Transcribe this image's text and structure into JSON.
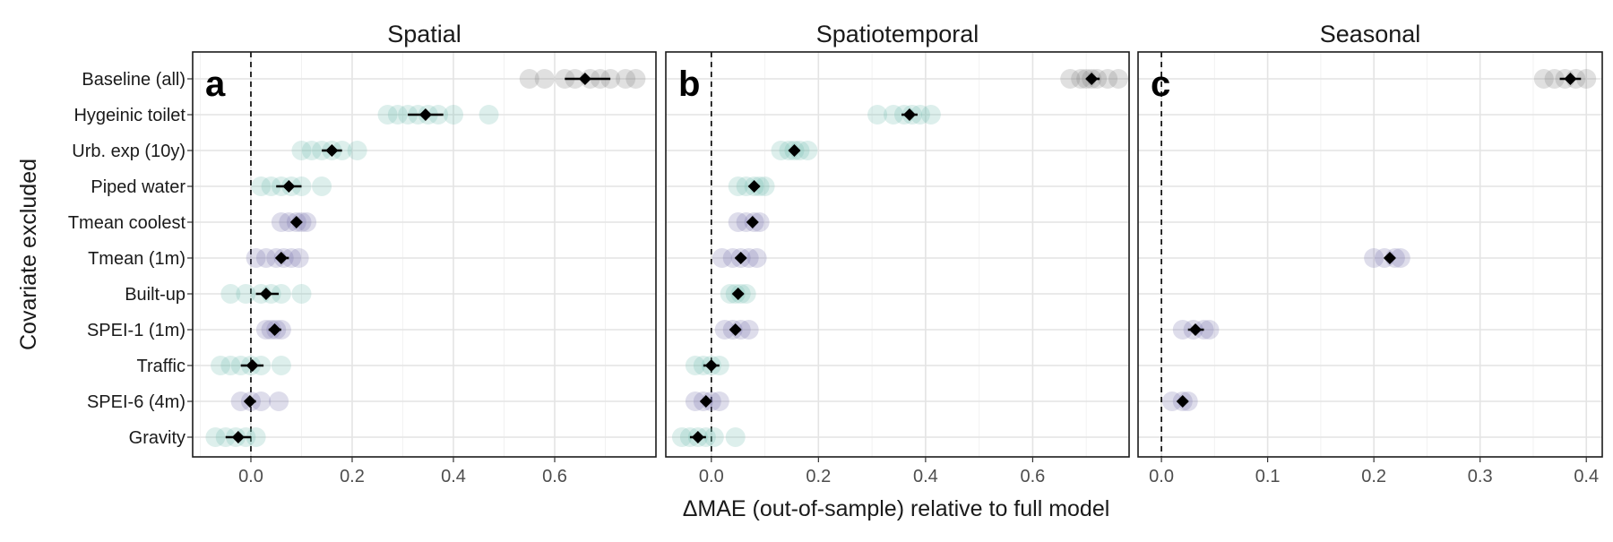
{
  "chart_data": {
    "type": "scatter",
    "xlabel": "ΔMAE (out-of-sample) relative to full model",
    "ylabel": "Covariate excluded",
    "categories": [
      "Baseline (all)",
      "Hygeinic toilet",
      "Urb. exp (10y)",
      "Piped water",
      "Tmean coolest",
      "Tmean (1m)",
      "Built-up",
      "SPEI-1 (1m)",
      "Traffic",
      "SPEI-6 (4m)",
      "Gravity"
    ],
    "colors": {
      "baseline": "#707070",
      "teal": "#66b8aa",
      "purple": "#6a65a3",
      "mean_marker": "#000000"
    },
    "panels": [
      {
        "title": "Spatial",
        "letter": "a",
        "xlim": [
          -0.115,
          0.8
        ],
        "xticks": [
          0.0,
          0.2,
          0.4,
          0.6
        ],
        "xtick_labels": [
          "0.0",
          "0.2",
          "0.4",
          "0.6"
        ],
        "series": [
          {
            "category": "Baseline (all)",
            "group": "baseline",
            "mean": 0.66,
            "ci": [
              0.62,
              0.71
            ],
            "points": [
              0.55,
              0.58,
              0.62,
              0.64,
              0.67,
              0.69,
              0.71,
              0.74,
              0.76
            ]
          },
          {
            "category": "Hygeinic toilet",
            "group": "teal",
            "mean": 0.345,
            "ci": [
              0.31,
              0.38
            ],
            "points": [
              0.27,
              0.29,
              0.31,
              0.33,
              0.35,
              0.37,
              0.4,
              0.47
            ]
          },
          {
            "category": "Urb. exp (10y)",
            "group": "teal",
            "mean": 0.16,
            "ci": [
              0.14,
              0.18
            ],
            "points": [
              0.1,
              0.12,
              0.14,
              0.16,
              0.18,
              0.21
            ]
          },
          {
            "category": "Piped water",
            "group": "teal",
            "mean": 0.075,
            "ci": [
              0.05,
              0.1
            ],
            "points": [
              0.02,
              0.04,
              0.06,
              0.08,
              0.1,
              0.14
            ]
          },
          {
            "category": "Tmean coolest",
            "group": "purple",
            "mean": 0.09,
            "ci": [
              0.08,
              0.1
            ],
            "points": [
              0.06,
              0.075,
              0.09,
              0.1,
              0.11
            ]
          },
          {
            "category": "Tmean (1m)",
            "group": "purple",
            "mean": 0.06,
            "ci": [
              0.05,
              0.075
            ],
            "points": [
              0.01,
              0.03,
              0.05,
              0.065,
              0.08,
              0.095
            ]
          },
          {
            "category": "Built-up",
            "group": "teal",
            "mean": 0.03,
            "ci": [
              0.01,
              0.055
            ],
            "points": [
              -0.04,
              -0.01,
              0.02,
              0.04,
              0.06,
              0.1
            ]
          },
          {
            "category": "SPEI-1 (1m)",
            "group": "purple",
            "mean": 0.047,
            "ci": [
              0.035,
              0.06
            ],
            "points": [
              0.03,
              0.04,
              0.05,
              0.06
            ]
          },
          {
            "category": "Traffic",
            "group": "teal",
            "mean": 0.003,
            "ci": [
              -0.02,
              0.025
            ],
            "points": [
              -0.06,
              -0.04,
              -0.02,
              0.0,
              0.02,
              0.06
            ]
          },
          {
            "category": "SPEI-6 (4m)",
            "group": "purple",
            "mean": -0.002,
            "ci": [
              -0.01,
              0.01
            ],
            "points": [
              -0.02,
              0.0,
              0.02,
              0.055
            ]
          },
          {
            "category": "Gravity",
            "group": "teal",
            "mean": -0.025,
            "ci": [
              -0.05,
              0.0
            ],
            "points": [
              -0.07,
              -0.05,
              -0.03,
              -0.01,
              0.01
            ]
          }
        ]
      },
      {
        "title": "Spatiotemporal",
        "letter": "b",
        "xlim": [
          -0.085,
          0.78
        ],
        "xticks": [
          0.0,
          0.2,
          0.4,
          0.6
        ],
        "xtick_labels": [
          "0.0",
          "0.2",
          "0.4",
          "0.6"
        ],
        "series": [
          {
            "category": "Baseline (all)",
            "group": "baseline",
            "mean": 0.71,
            "ci": [
              0.7,
              0.725
            ],
            "points": [
              0.67,
              0.69,
              0.7,
              0.71,
              0.72,
              0.74,
              0.76
            ]
          },
          {
            "category": "Hygeinic toilet",
            "group": "teal",
            "mean": 0.37,
            "ci": [
              0.355,
              0.385
            ],
            "points": [
              0.31,
              0.34,
              0.36,
              0.375,
              0.39,
              0.41
            ]
          },
          {
            "category": "Urb. exp (10y)",
            "group": "teal",
            "mean": 0.155,
            "ci": [
              0.145,
              0.165
            ],
            "points": [
              0.13,
              0.145,
              0.155,
              0.165,
              0.18
            ]
          },
          {
            "category": "Piped water",
            "group": "teal",
            "mean": 0.08,
            "ci": [
              0.07,
              0.09
            ],
            "points": [
              0.05,
              0.065,
              0.08,
              0.09,
              0.1
            ]
          },
          {
            "category": "Tmean coolest",
            "group": "purple",
            "mean": 0.077,
            "ci": [
              0.07,
              0.085
            ],
            "points": [
              0.05,
              0.065,
              0.08,
              0.09
            ]
          },
          {
            "category": "Tmean (1m)",
            "group": "purple",
            "mean": 0.055,
            "ci": [
              0.045,
              0.065
            ],
            "points": [
              0.02,
              0.04,
              0.055,
              0.07,
              0.085
            ]
          },
          {
            "category": "Built-up",
            "group": "teal",
            "mean": 0.05,
            "ci": [
              0.04,
              0.06
            ],
            "points": [
              0.035,
              0.045,
              0.055,
              0.065
            ]
          },
          {
            "category": "SPEI-1 (1m)",
            "group": "purple",
            "mean": 0.045,
            "ci": [
              0.035,
              0.055
            ],
            "points": [
              0.025,
              0.04,
              0.055,
              0.07
            ]
          },
          {
            "category": "Traffic",
            "group": "teal",
            "mean": 0.0,
            "ci": [
              -0.015,
              0.015
            ],
            "points": [
              -0.03,
              -0.015,
              0.0,
              0.015
            ]
          },
          {
            "category": "SPEI-6 (4m)",
            "group": "purple",
            "mean": -0.01,
            "ci": [
              -0.02,
              0.0
            ],
            "points": [
              -0.03,
              -0.015,
              0.0,
              0.015
            ]
          },
          {
            "category": "Gravity",
            "group": "teal",
            "mean": -0.025,
            "ci": [
              -0.04,
              -0.01
            ],
            "points": [
              -0.055,
              -0.04,
              -0.025,
              -0.01,
              0.005,
              0.045
            ]
          }
        ]
      },
      {
        "title": "Seasonal",
        "letter": "c",
        "xlim": [
          -0.022,
          0.415
        ],
        "xticks": [
          0.0,
          0.1,
          0.2,
          0.3,
          0.4
        ],
        "xtick_labels": [
          "0.0",
          "0.1",
          "0.2",
          "0.3",
          "0.4"
        ],
        "series": [
          {
            "category": "Baseline (all)",
            "group": "baseline",
            "mean": 0.385,
            "ci": [
              0.375,
              0.395
            ],
            "points": [
              0.36,
              0.37,
              0.38,
              0.39,
              0.4
            ]
          },
          {
            "category": "Tmean (1m)",
            "group": "purple",
            "mean": 0.215,
            "ci": [
              0.21,
              0.22
            ],
            "points": [
              0.2,
              0.21,
              0.22,
              0.225
            ]
          },
          {
            "category": "SPEI-1 (1m)",
            "group": "purple",
            "mean": 0.032,
            "ci": [
              0.025,
              0.04
            ],
            "points": [
              0.02,
              0.03,
              0.04,
              0.045
            ]
          },
          {
            "category": "SPEI-6 (4m)",
            "group": "purple",
            "mean": 0.02,
            "ci": [
              0.015,
              0.025
            ],
            "points": [
              0.01,
              0.02,
              0.025
            ]
          }
        ]
      }
    ]
  }
}
